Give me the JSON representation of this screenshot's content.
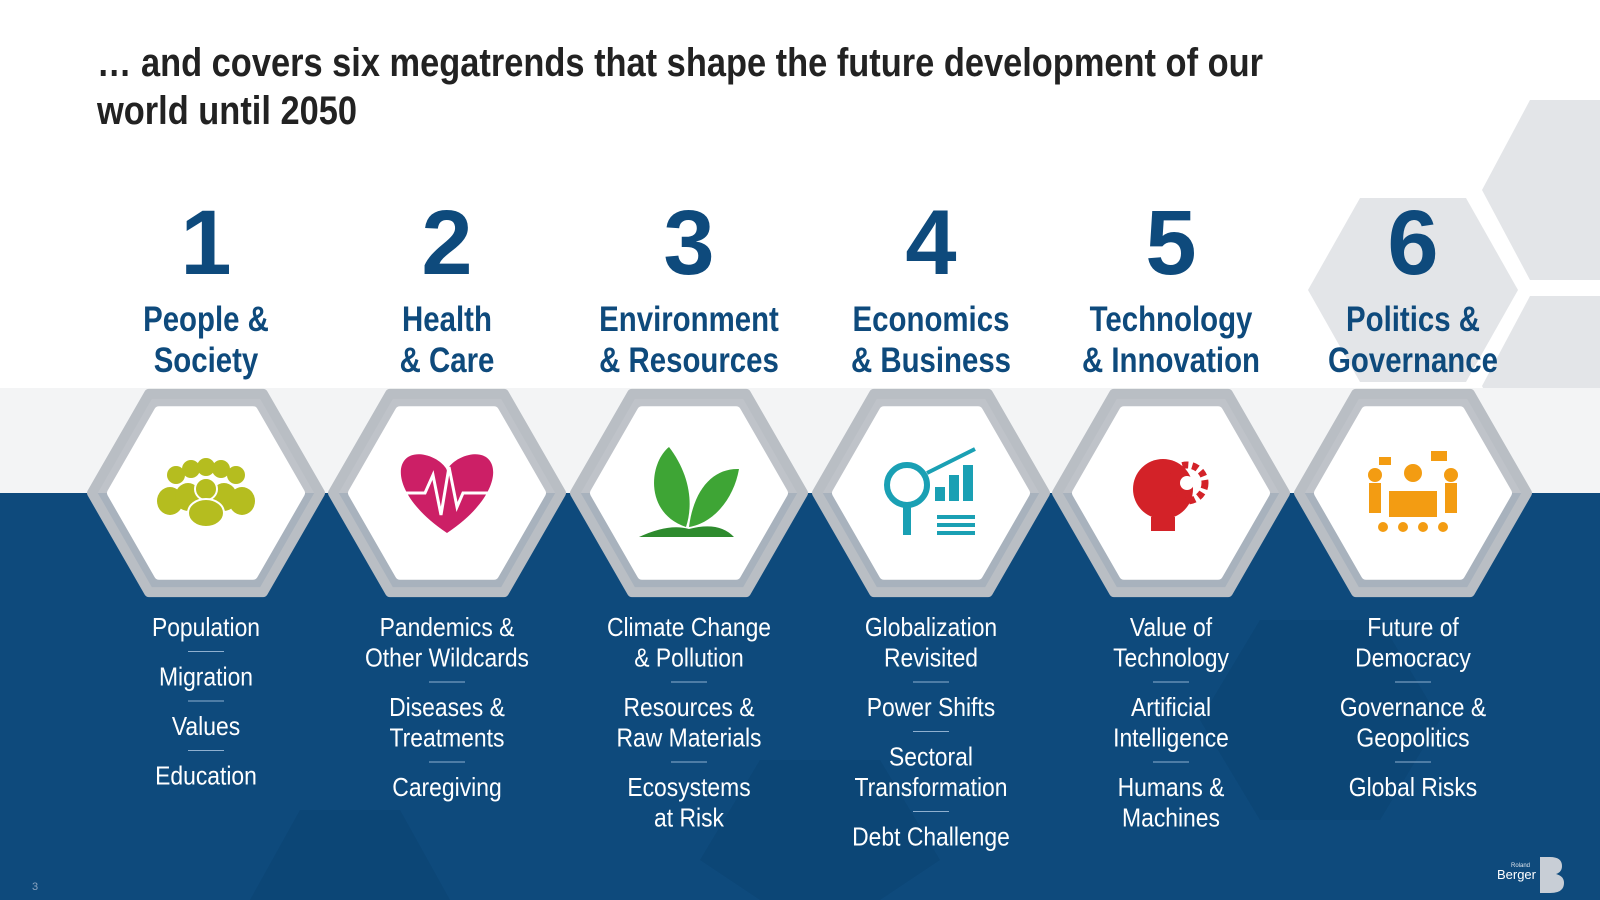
{
  "title": [
    "… and covers six megatrends that shape the future development of our",
    "world until 2050"
  ],
  "megatrends": [
    {
      "number": "1",
      "title": [
        "People &",
        "Society"
      ],
      "topics": [
        [
          "Population"
        ],
        [
          "Migration"
        ],
        [
          "Values"
        ],
        [
          "Education"
        ]
      ]
    },
    {
      "number": "2",
      "title": [
        "Health",
        "& Care"
      ],
      "topics": [
        [
          "Pandemics &",
          "Other Wildcards"
        ],
        [
          "Diseases &",
          "Treatments"
        ],
        [
          "Caregiving"
        ]
      ]
    },
    {
      "number": "3",
      "title": [
        "Environment",
        "& Resources"
      ],
      "topics": [
        [
          "Climate Change",
          "& Pollution"
        ],
        [
          "Resources &",
          "Raw Materials"
        ],
        [
          "Ecosystems",
          "at Risk"
        ]
      ]
    },
    {
      "number": "4",
      "title": [
        "Economics",
        "& Business"
      ],
      "topics": [
        [
          "Globalization",
          "Revisited"
        ],
        [
          "Power Shifts"
        ],
        [
          "Sectoral",
          "Transformation"
        ],
        [
          "Debt Challenge"
        ]
      ]
    },
    {
      "number": "5",
      "title": [
        "Technology",
        "& Innovation"
      ],
      "topics": [
        [
          "Value of",
          "Technology"
        ],
        [
          "Artificial",
          "Intelligence"
        ],
        [
          "Humans &",
          "Machines"
        ]
      ]
    },
    {
      "number": "6",
      "title": [
        "Politics &",
        "Governance"
      ],
      "topics": [
        [
          "Future of",
          "Democracy"
        ],
        [
          "Governance &",
          "Geopolitics"
        ],
        [
          "Global Risks"
        ]
      ]
    }
  ],
  "footer": {
    "page": "3",
    "logo": [
      "Roland",
      "Berger"
    ]
  }
}
